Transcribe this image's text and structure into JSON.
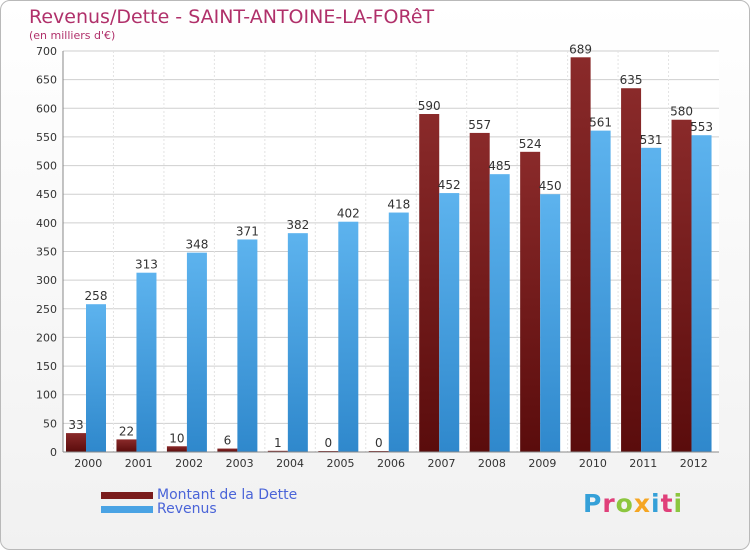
{
  "header": {
    "title": "Revenus/Dette - SAINT-ANTOINE-LA-FORêT",
    "subtitle": "(en milliers d'€)"
  },
  "legend": {
    "items": [
      {
        "label": "Montant de la Dette",
        "color": "#7a1c1c"
      },
      {
        "label": "Revenus",
        "color": "#4aa3e4"
      }
    ]
  },
  "logo": {
    "letters": [
      {
        "ch": "P",
        "color": "#35a0d8"
      },
      {
        "ch": "r",
        "color": "#e0407a"
      },
      {
        "ch": "o",
        "color": "#8cc63f"
      },
      {
        "ch": "x",
        "color": "#f5a623"
      },
      {
        "ch": "i",
        "color": "#35a0d8"
      },
      {
        "ch": "t",
        "color": "#e0407a"
      },
      {
        "ch": "i",
        "color": "#8cc63f"
      }
    ]
  },
  "chart_data": {
    "type": "bar",
    "title": "Revenus/Dette - SAINT-ANTOINE-LA-FORêT",
    "subtitle": "(en milliers d'€)",
    "categories": [
      "2000",
      "2001",
      "2002",
      "2003",
      "2004",
      "2005",
      "2006",
      "2007",
      "2008",
      "2009",
      "2010",
      "2011",
      "2012"
    ],
    "series": [
      {
        "name": "Montant de la Dette",
        "color": "#7a1c1c",
        "values": [
          33,
          22,
          10,
          6,
          1,
          0,
          0,
          590,
          557,
          524,
          689,
          635,
          580
        ]
      },
      {
        "name": "Revenus",
        "color": "#4aa3e4",
        "values": [
          258,
          313,
          348,
          371,
          382,
          402,
          418,
          452,
          485,
          450,
          561,
          531,
          553
        ]
      }
    ],
    "ylim": [
      0,
      700
    ],
    "yticks": [
      0,
      50,
      100,
      150,
      200,
      250,
      300,
      350,
      400,
      450,
      500,
      550,
      600,
      650,
      700
    ],
    "grid": true,
    "legend_position": "bottom-left"
  }
}
